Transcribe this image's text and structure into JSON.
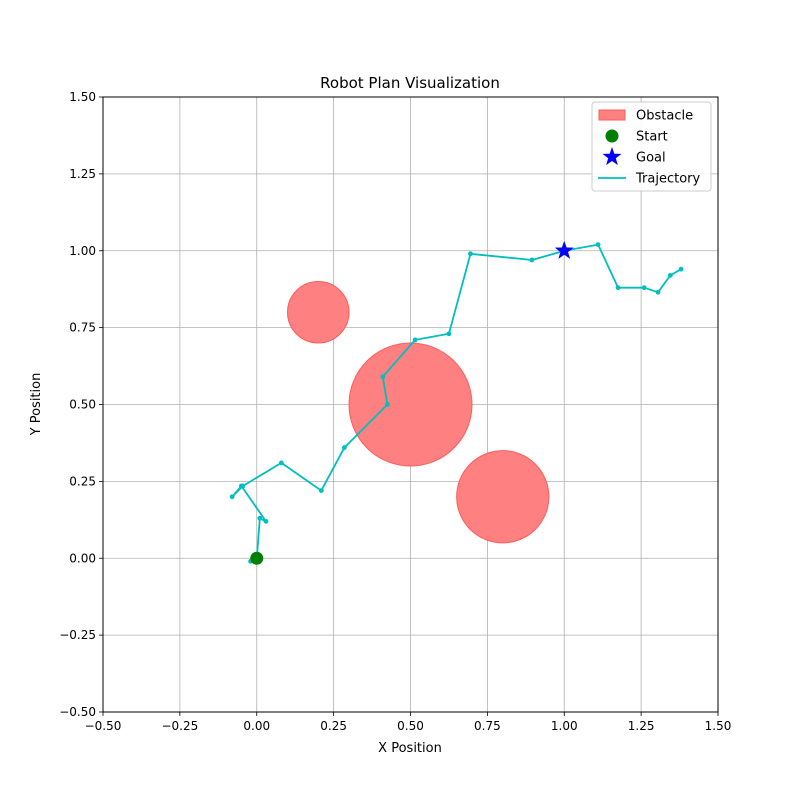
{
  "chart_data": {
    "type": "scatter",
    "title": "Robot Plan Visualization",
    "xlabel": "X Position",
    "ylabel": "Y Position",
    "xlim": [
      -0.5,
      1.5
    ],
    "ylim": [
      -0.5,
      1.5
    ],
    "xticks": [
      -0.5,
      -0.25,
      0.0,
      0.25,
      0.5,
      0.75,
      1.0,
      1.25,
      1.5
    ],
    "yticks": [
      -0.5,
      -0.25,
      0.0,
      0.25,
      0.5,
      0.75,
      1.0,
      1.25,
      1.5
    ],
    "xtick_labels": [
      "−0.50",
      "−0.25",
      "0.00",
      "0.25",
      "0.50",
      "0.75",
      "1.00",
      "1.25",
      "1.50"
    ],
    "ytick_labels": [
      "−0.50",
      "−0.25",
      "0.00",
      "0.25",
      "0.50",
      "0.75",
      "1.00",
      "1.25",
      "1.50"
    ],
    "grid": true,
    "legend_position": "top-right",
    "legend": [
      {
        "label": "Obstacle",
        "marker": "patch",
        "color": "#ff8080"
      },
      {
        "label": "Start",
        "marker": "circle",
        "color": "#008000"
      },
      {
        "label": "Goal",
        "marker": "star",
        "color": "#0000ff"
      },
      {
        "label": "Trajectory",
        "marker": "line",
        "color": "#00bfbf"
      }
    ],
    "obstacles": [
      {
        "center": [
          0.2,
          0.8
        ],
        "radius": 0.1
      },
      {
        "center": [
          0.5,
          0.5
        ],
        "radius": 0.2
      },
      {
        "center": [
          0.8,
          0.2
        ],
        "radius": 0.15
      }
    ],
    "start": [
      0.0,
      0.0
    ],
    "goal": [
      1.0,
      1.0
    ],
    "trajectory": [
      [
        0.0,
        0.0
      ],
      [
        -0.02,
        -0.01
      ],
      [
        0.0,
        0.0
      ],
      [
        0.01,
        0.13
      ],
      [
        0.03,
        0.12
      ],
      [
        -0.05,
        0.235
      ],
      [
        -0.08,
        0.2
      ],
      [
        -0.045,
        0.235
      ],
      [
        0.08,
        0.31
      ],
      [
        0.21,
        0.22
      ],
      [
        0.285,
        0.36
      ],
      [
        0.425,
        0.5
      ],
      [
        0.41,
        0.59
      ],
      [
        0.515,
        0.71
      ],
      [
        0.625,
        0.73
      ],
      [
        0.695,
        0.99
      ],
      [
        0.895,
        0.97
      ],
      [
        1.0,
        1.0
      ],
      [
        1.11,
        1.02
      ],
      [
        1.175,
        0.88
      ],
      [
        1.26,
        0.88
      ],
      [
        1.305,
        0.865
      ],
      [
        1.345,
        0.92
      ],
      [
        1.38,
        0.94
      ]
    ],
    "colors": {
      "obstacle": "#ff8080",
      "obstacle_edge": "#ff5c5c",
      "start": "#008000",
      "goal": "#0000ff",
      "trajectory": "#00bfbf",
      "grid": "#b0b0b0"
    }
  }
}
